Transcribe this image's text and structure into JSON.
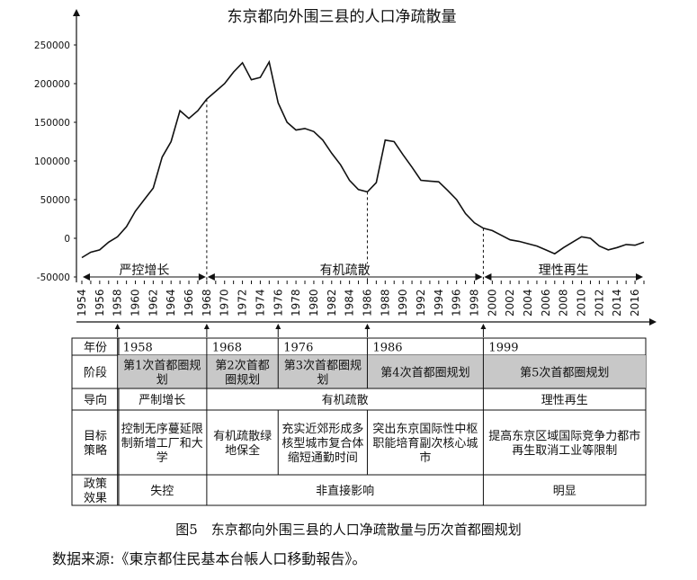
{
  "chart_data": {
    "type": "line",
    "title": "东京都向外围三县的人口净疏散量",
    "ylim": [
      -50000,
      250000
    ],
    "yticks": [
      -50000,
      0,
      50000,
      100000,
      150000,
      200000,
      250000
    ],
    "ytick_labels": [
      "-50000",
      "0",
      "50000",
      "100000",
      "150000",
      "200000",
      "250000"
    ],
    "xlim": [
      1954,
      2017
    ],
    "xticks": [
      1954,
      1956,
      1958,
      1960,
      1962,
      1964,
      1966,
      1968,
      1970,
      1972,
      1974,
      1976,
      1978,
      1980,
      1982,
      1984,
      1986,
      1988,
      1990,
      1992,
      1994,
      1996,
      1998,
      2000,
      2002,
      2004,
      2006,
      2008,
      2010,
      2012,
      2014,
      2016
    ],
    "x": [
      1954,
      1955,
      1956,
      1957,
      1958,
      1959,
      1960,
      1961,
      1962,
      1963,
      1964,
      1965,
      1966,
      1967,
      1968,
      1969,
      1970,
      1971,
      1972,
      1973,
      1974,
      1975,
      1976,
      1977,
      1978,
      1979,
      1980,
      1981,
      1982,
      1983,
      1984,
      1985,
      1986,
      1987,
      1988,
      1989,
      1990,
      1991,
      1992,
      1993,
      1994,
      1995,
      1996,
      1997,
      1998,
      1999,
      2000,
      2001,
      2002,
      2003,
      2004,
      2005,
      2006,
      2007,
      2008,
      2009,
      2010,
      2011,
      2012,
      2013,
      2014,
      2015,
      2016,
      2017
    ],
    "y": [
      -25000,
      -18000,
      -15000,
      -5000,
      2000,
      15000,
      35000,
      50000,
      65000,
      105000,
      125000,
      165000,
      155000,
      165000,
      180000,
      190000,
      200000,
      215000,
      227000,
      205000,
      208000,
      228000,
      175000,
      150000,
      140000,
      142000,
      138000,
      127000,
      110000,
      95000,
      75000,
      63000,
      60000,
      72000,
      127000,
      125000,
      108000,
      92000,
      75000,
      74000,
      73000,
      62000,
      50000,
      32000,
      20000,
      13000,
      10000,
      4000,
      -2000,
      -4000,
      -7000,
      -10000,
      -15000,
      -20000,
      -12000,
      -5000,
      2000,
      0,
      -10000,
      -15000,
      -12000,
      -8000,
      -9000,
      -5000
    ],
    "phase_dividers": [
      1968,
      1986,
      1999
    ],
    "phases": [
      {
        "label": "严控增长",
        "from": 1954,
        "to": 1968
      },
      {
        "label": "有机疏散",
        "from": 1968,
        "to": 1999
      },
      {
        "label": "理性再生",
        "from": 1999,
        "to": 2017
      }
    ],
    "arrow_years": [
      1958,
      1968,
      1976,
      1986,
      1999
    ]
  },
  "table": {
    "rows": [
      {
        "header": "年份",
        "cells": [
          {
            "text": "1958",
            "span": [
              1958,
              1968
            ]
          },
          {
            "text": "1968",
            "span": [
              1968,
              1976
            ]
          },
          {
            "text": "1976",
            "span": [
              1976,
              1986
            ]
          },
          {
            "text": "1986",
            "span": [
              1986,
              1999
            ]
          },
          {
            "text": "1999",
            "span": [
              1999,
              2017
            ]
          }
        ]
      },
      {
        "header": "阶段",
        "cells": [
          {
            "text": "第1次首都圈规划",
            "span": [
              1958,
              1968
            ],
            "shaded": true
          },
          {
            "text": "第2次首都圈规划",
            "span": [
              1968,
              1976
            ],
            "shaded": true
          },
          {
            "text": "第3次首都圈规划",
            "span": [
              1976,
              1986
            ],
            "shaded": true
          },
          {
            "text": "第4次首都圈规划",
            "span": [
              1986,
              1999
            ],
            "shaded": true
          },
          {
            "text": "第5次首都圈规划",
            "span": [
              1999,
              2017
            ],
            "shaded": true
          }
        ]
      },
      {
        "header": "导向",
        "cells": [
          {
            "text": "严制增长",
            "span": [
              1958,
              1968
            ]
          },
          {
            "text": "有机疏散",
            "span": [
              1968,
              1999
            ]
          },
          {
            "text": "理性再生",
            "span": [
              1999,
              2017
            ]
          }
        ]
      },
      {
        "header": "目标策略",
        "cells": [
          {
            "text": "控制无序蔓延限制新增工厂和大学",
            "span": [
              1958,
              1968
            ]
          },
          {
            "text": "有机疏散绿地保全",
            "span": [
              1968,
              1976
            ]
          },
          {
            "text": "充实近郊形成多核型城市复合体缩短通勤时间",
            "span": [
              1976,
              1986
            ]
          },
          {
            "text": "突出东京国际性中枢职能培育副次核心城市",
            "span": [
              1986,
              1999
            ]
          },
          {
            "text": "提高东京区域国际竞争力都市再生取消工业等限制",
            "span": [
              1999,
              2017
            ]
          }
        ]
      },
      {
        "header": "政策效果",
        "cells": [
          {
            "text": "失控",
            "span": [
              1958,
              1968
            ]
          },
          {
            "text": "非直接影响",
            "span": [
              1968,
              1999
            ]
          },
          {
            "text": "明显",
            "span": [
              1999,
              2017
            ]
          }
        ]
      }
    ]
  },
  "caption": "图5　东京都向外围三县的人口净疏散量与历次首都圈规划",
  "source": "数据来源:《東京都住民基本台帳人口移動報告》。"
}
